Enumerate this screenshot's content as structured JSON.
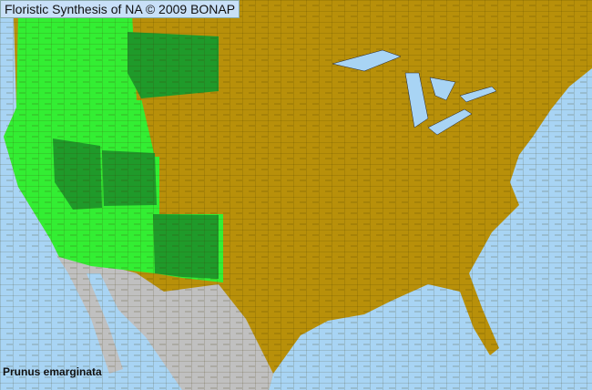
{
  "header": {
    "title": "Floristic Synthesis of NA © 2009 BONAP"
  },
  "species": {
    "name": "Prunus emarginata"
  },
  "colors": {
    "ocean": "#a8d4f4",
    "absent": "#b8900a",
    "present": "#33ee33",
    "present_dark": "#1f9a2a",
    "outside_area": "#c0c0c0",
    "county_lines": "#333333"
  }
}
